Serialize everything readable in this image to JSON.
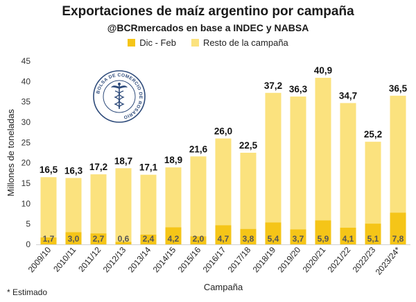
{
  "chart_data": {
    "type": "bar",
    "stacked": true,
    "title": "Exportaciones de maíz argentino por campaña",
    "subtitle": "@BCRmercados en base a INDEC y NABSA",
    "xlabel": "Campaña",
    "ylabel": "Millones de toneladas",
    "ylim": [
      0,
      45
    ],
    "yticks": [
      "0",
      "5",
      "10",
      "15",
      "20",
      "25",
      "30",
      "35",
      "40",
      "45"
    ],
    "grid": false,
    "legend_position": "top",
    "categories": [
      "2009/10",
      "2010/11",
      "2011/12",
      "2012/13",
      "2013/14",
      "2014/15",
      "2015/16",
      "2016/17",
      "2017/18",
      "2018/19",
      "2019/20",
      "2020/21",
      "2021/22",
      "2022/23",
      "2023/24*"
    ],
    "totals": [
      16.5,
      16.3,
      17.2,
      18.7,
      17.1,
      18.9,
      21.6,
      26.0,
      22.5,
      37.2,
      36.3,
      40.9,
      34.7,
      25.2,
      36.5
    ],
    "total_labels": [
      "16,5",
      "16,3",
      "17,2",
      "18,7",
      "17,1",
      "18,9",
      "21,6",
      "26,0",
      "22,5",
      "37,2",
      "36,3",
      "40,9",
      "34,7",
      "25,2",
      "36,5"
    ],
    "series": [
      {
        "name": "Dic - Feb",
        "color": "#f5c518",
        "values": [
          1.7,
          3.0,
          2.7,
          0.6,
          2.4,
          4.2,
          2.0,
          4.7,
          3.8,
          5.4,
          3.7,
          5.9,
          4.1,
          5.1,
          7.8
        ],
        "labels": [
          "1,7",
          "3,0",
          "2,7",
          "0,6",
          "2,4",
          "4,2",
          "2,0",
          "4,7",
          "3,8",
          "5,4",
          "3,7",
          "5,9",
          "4,1",
          "5,1",
          "7,8"
        ]
      },
      {
        "name": "Resto de la campaña",
        "color": "#fbe27e",
        "values": [
          14.8,
          13.3,
          14.5,
          18.1,
          14.7,
          14.7,
          19.6,
          21.3,
          18.7,
          31.8,
          32.6,
          35.0,
          30.6,
          20.1,
          28.7
        ]
      }
    ]
  },
  "footnote": "* Estimado",
  "logo": {
    "text": "BOLSA DE COMERCIO DE ROSARIO",
    "icon": "caduceus-seal-icon"
  }
}
